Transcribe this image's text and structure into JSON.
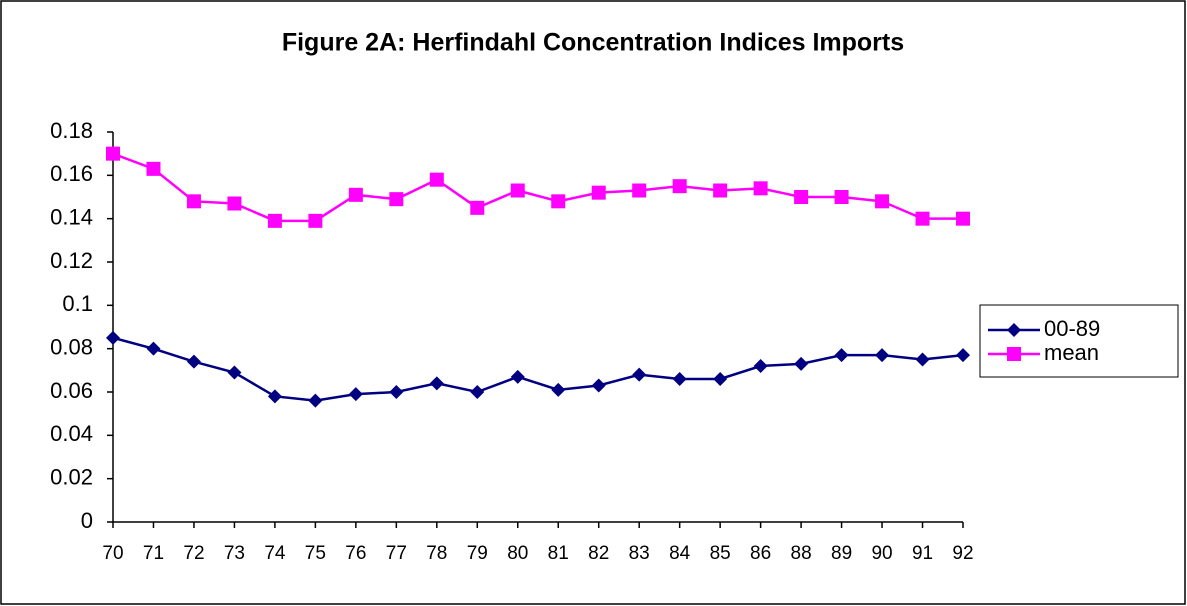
{
  "chart_data": {
    "type": "line",
    "title": "Figure 2A: Herfindahl Concentration Indices Imports",
    "categories": [
      "70",
      "71",
      "72",
      "73",
      "74",
      "75",
      "76",
      "77",
      "78",
      "79",
      "80",
      "81",
      "82",
      "83",
      "84",
      "85",
      "86",
      "88",
      "89",
      "90",
      "91",
      "92"
    ],
    "series": [
      {
        "name": "00-89",
        "color": "#000080",
        "marker": "diamond",
        "values": [
          0.085,
          0.08,
          0.074,
          0.069,
          0.058,
          0.056,
          0.059,
          0.06,
          0.064,
          0.06,
          0.067,
          0.061,
          0.063,
          0.068,
          0.066,
          0.066,
          0.072,
          0.073,
          0.077,
          0.077,
          0.075,
          0.077
        ]
      },
      {
        "name": "mean",
        "color": "#FF00FF",
        "marker": "square",
        "values": [
          0.17,
          0.163,
          0.148,
          0.147,
          0.139,
          0.139,
          0.151,
          0.149,
          0.158,
          0.145,
          0.153,
          0.148,
          0.152,
          0.153,
          0.155,
          0.153,
          0.154,
          0.15,
          0.15,
          0.148,
          0.14,
          0.14
        ]
      }
    ],
    "ylim": [
      0,
      0.18
    ],
    "yticks": [
      0,
      0.02,
      0.04,
      0.06,
      0.08,
      0.1,
      0.12,
      0.14,
      0.16,
      0.18
    ],
    "grid": false,
    "legend": "right"
  }
}
